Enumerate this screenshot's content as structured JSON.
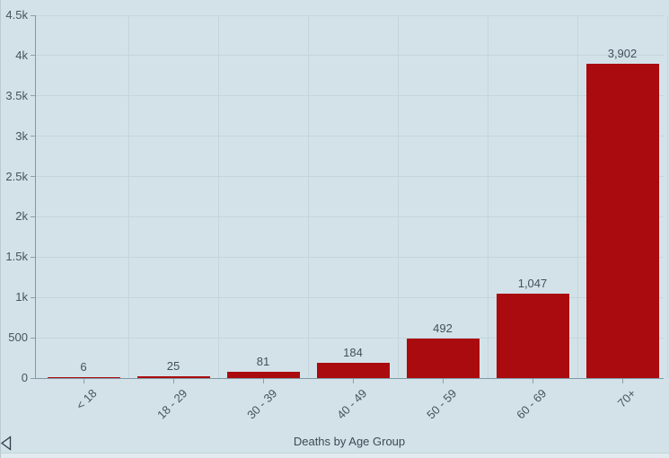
{
  "chart_data": {
    "type": "bar",
    "title": "",
    "categories": [
      "< 18",
      "18 - 29",
      "30 - 39",
      "40 - 49",
      "50 - 59",
      "60 - 69",
      "70+"
    ],
    "values": [
      6,
      25,
      81,
      184,
      492,
      1047,
      3902
    ],
    "value_labels": [
      "6",
      "25",
      "81",
      "184",
      "492",
      "1,047",
      "3,902"
    ],
    "xlabel": "Deaths by Age Group",
    "ylabel": "",
    "ylim": [
      0,
      4500
    ],
    "ytick_step": 500,
    "ytick_labels": [
      "0",
      "500",
      "1k",
      "1.5k",
      "2k",
      "2.5k",
      "3k",
      "3.5k",
      "4k",
      "4.5k"
    ],
    "grid": true,
    "legend": false
  },
  "colors": {
    "background": "#d3e2e9",
    "bar": "#aa0b0e",
    "grid": "#c5d5dc",
    "axis": "#8199a4",
    "text": "#46535d",
    "footer_divider": "#c3d3da",
    "footer_background": "#e2ebef",
    "icon": "#2c3d48"
  },
  "icons": {
    "collapse": "triangle-left"
  }
}
